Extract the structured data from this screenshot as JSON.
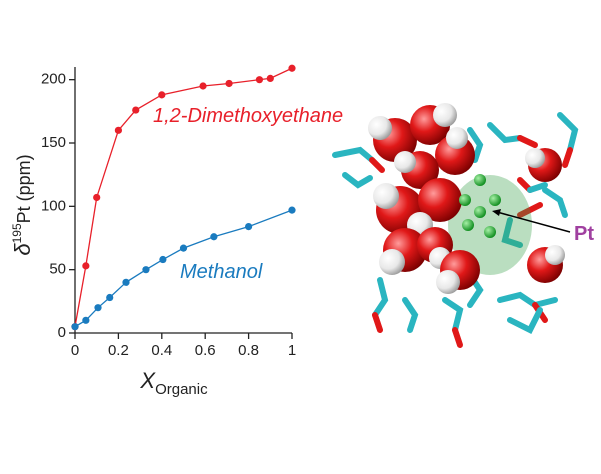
{
  "chart_data": {
    "type": "line",
    "ylabel_parts": [
      "δ",
      "195",
      "Pt (ppm)"
    ],
    "xlabel_parts": [
      "X",
      "Organic"
    ],
    "xlim": [
      0,
      1
    ],
    "ylim": [
      0,
      210
    ],
    "xticks": [
      0,
      0.2,
      0.4,
      0.6,
      0.8,
      1
    ],
    "yticks": [
      0,
      50,
      100,
      150,
      200
    ],
    "series": [
      {
        "name": "1,2-Dimethoxyethane",
        "color": "#e8202a",
        "x": [
          0,
          0.05,
          0.1,
          0.2,
          0.28,
          0.4,
          0.59,
          0.71,
          0.85,
          0.9,
          1
        ],
        "values": [
          5,
          53,
          107,
          160,
          176,
          188,
          195,
          197,
          200,
          201,
          209
        ]
      },
      {
        "name": "Methanol",
        "color": "#1a7bbf",
        "x": [
          0,
          0.05,
          0.106,
          0.16,
          0.235,
          0.327,
          0.405,
          0.5,
          0.64,
          0.8,
          1
        ],
        "values": [
          5,
          10,
          20,
          28,
          40,
          50,
          58,
          67,
          76,
          84,
          97
        ]
      }
    ],
    "annotation": "Pt"
  }
}
